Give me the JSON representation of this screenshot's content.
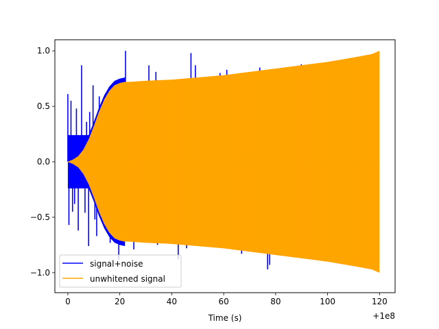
{
  "chart_data": {
    "type": "line",
    "title": "",
    "xlabel": "Time (s)",
    "ylabel": "",
    "x_offset_label": "+1e8",
    "xlim": [
      -5,
      126
    ],
    "ylim": [
      -1.18,
      1.1
    ],
    "x_ticks": [
      0,
      20,
      40,
      60,
      80,
      100,
      120
    ],
    "x_tick_labels": [
      "0",
      "20",
      "40",
      "60",
      "80",
      "100",
      "120"
    ],
    "y_ticks": [
      -1.0,
      -0.5,
      0.0,
      0.5,
      1.0
    ],
    "y_tick_labels": [
      "−1.0",
      "−0.5",
      "0.0",
      "0.5",
      "1.0"
    ],
    "grid": false,
    "legend_position": "lower-left",
    "series": [
      {
        "name": "signal+noise",
        "color": "#0000ff",
        "spikes": [
          {
            "x": 0.0,
            "y": 0.61
          },
          {
            "x": 0.4,
            "y": -0.57
          },
          {
            "x": 1.2,
            "y": 0.55
          },
          {
            "x": 1.8,
            "y": -0.45
          },
          {
            "x": 2.6,
            "y": -0.38
          },
          {
            "x": 3.3,
            "y": 0.48
          },
          {
            "x": 4.0,
            "y": -0.62
          },
          {
            "x": 5.3,
            "y": 0.87
          },
          {
            "x": 6.6,
            "y": -0.46
          },
          {
            "x": 7.2,
            "y": 0.36
          },
          {
            "x": 8.0,
            "y": -0.76
          },
          {
            "x": 8.4,
            "y": 0.45
          },
          {
            "x": 9.7,
            "y": 0.69
          },
          {
            "x": 10.4,
            "y": -0.52
          },
          {
            "x": 11.1,
            "y": -0.67
          },
          {
            "x": 12.1,
            "y": 0.59
          },
          {
            "x": 12.7,
            "y": -0.46
          },
          {
            "x": 13.3,
            "y": 0.33
          },
          {
            "x": 14.0,
            "y": -0.51
          },
          {
            "x": 15.0,
            "y": 0.45
          },
          {
            "x": 16.3,
            "y": -0.73
          },
          {
            "x": 18.1,
            "y": 0.49
          },
          {
            "x": 18.9,
            "y": -0.73
          },
          {
            "x": 19.6,
            "y": -0.88
          },
          {
            "x": 22.2,
            "y": 1.0
          },
          {
            "x": 25.4,
            "y": -0.79
          },
          {
            "x": 31.2,
            "y": 0.87
          },
          {
            "x": 33.9,
            "y": 0.81
          },
          {
            "x": 34.5,
            "y": -0.75
          },
          {
            "x": 42.5,
            "y": -0.88
          },
          {
            "x": 45.7,
            "y": -0.78
          },
          {
            "x": 47.4,
            "y": 0.98
          },
          {
            "x": 49.1,
            "y": 0.87
          },
          {
            "x": 58.6,
            "y": 0.8
          },
          {
            "x": 61.2,
            "y": 0.83
          },
          {
            "x": 66.9,
            "y": -0.83
          },
          {
            "x": 73.9,
            "y": 0.85
          },
          {
            "x": 76.9,
            "y": -0.97
          },
          {
            "x": 77.7,
            "y": -0.93
          },
          {
            "x": 89.9,
            "y": 0.88
          }
        ]
      },
      {
        "name": "unwhitened signal",
        "color": "#ffa500",
        "envelope_x": [
          0,
          2,
          4,
          6,
          8,
          10,
          12,
          14,
          16,
          18,
          20,
          22,
          24,
          30,
          40,
          50,
          60,
          70,
          80,
          90,
          100,
          110,
          117,
          119,
          120
        ],
        "envelope_y": [
          0.0,
          0.02,
          0.05,
          0.11,
          0.2,
          0.32,
          0.45,
          0.56,
          0.64,
          0.69,
          0.71,
          0.72,
          0.72,
          0.73,
          0.74,
          0.76,
          0.78,
          0.81,
          0.84,
          0.87,
          0.9,
          0.94,
          0.97,
          0.99,
          1.0
        ]
      }
    ]
  }
}
